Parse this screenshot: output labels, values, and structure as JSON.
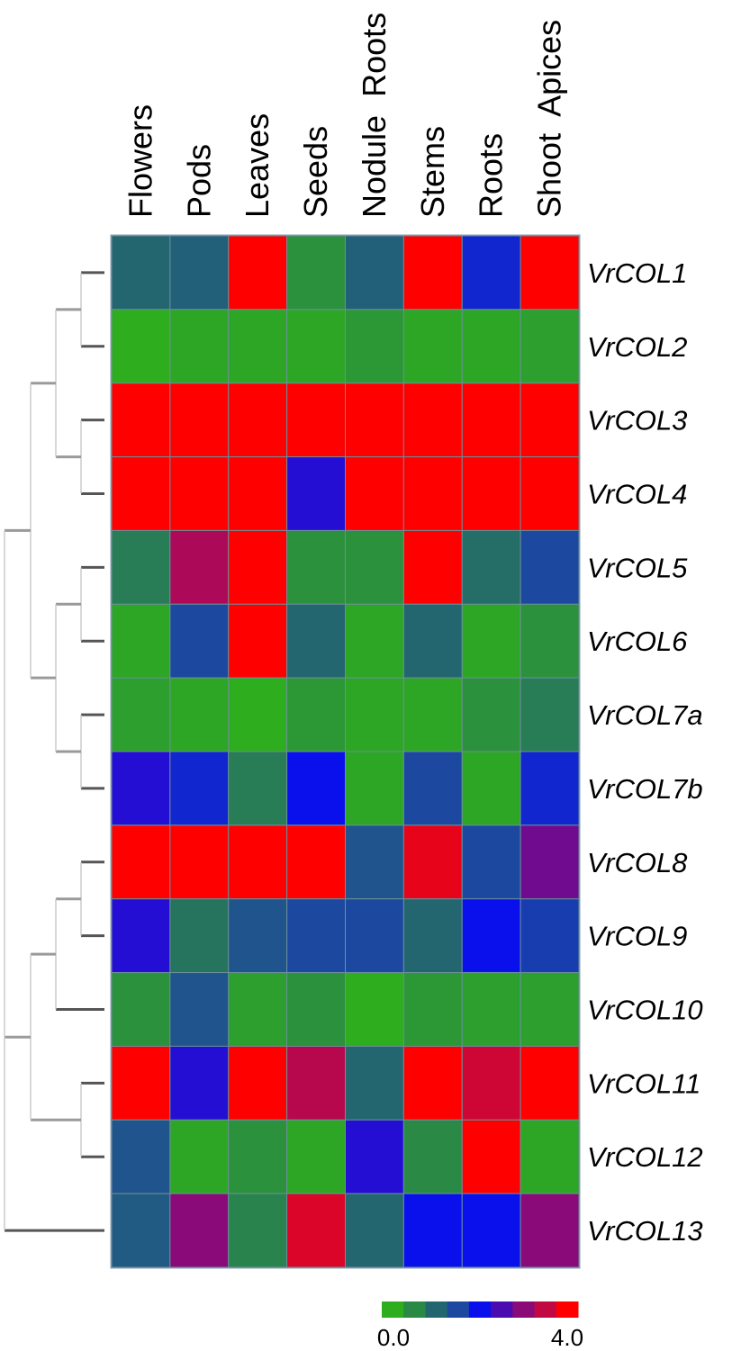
{
  "chart_data": {
    "type": "heatmap",
    "title": "",
    "columns": [
      "Flowers",
      "Pods",
      "Leaves",
      "Seeds",
      "Nodule  Roots",
      "Stems",
      "Roots",
      "Shoot  Apices"
    ],
    "rows": [
      "VrCOL1",
      "VrCOL2",
      "VrCOL3",
      "VrCOL4",
      "VrCOL5",
      "VrCOL6",
      "VrCOL7a",
      "VrCOL7b",
      "VrCOL8",
      "VrCOL9",
      "VrCOL10",
      "VrCOL11",
      "VrCOL12",
      "VrCOL13"
    ],
    "values": [
      [
        1.0,
        1.1,
        4.0,
        0.4,
        1.1,
        4.0,
        1.8,
        4.0
      ],
      [
        0.0,
        0.1,
        0.1,
        0.1,
        0.3,
        0.1,
        0.1,
        0.2
      ],
      [
        4.0,
        4.0,
        4.0,
        4.0,
        4.0,
        4.0,
        4.0,
        4.0
      ],
      [
        4.0,
        4.0,
        4.0,
        2.2,
        4.0,
        4.0,
        4.0,
        4.0
      ],
      [
        0.7,
        3.3,
        4.0,
        0.4,
        0.4,
        4.0,
        0.9,
        1.5
      ],
      [
        0.1,
        1.5,
        4.0,
        1.0,
        0.1,
        1.0,
        0.1,
        0.4
      ],
      [
        0.2,
        0.1,
        0.0,
        0.3,
        0.1,
        0.1,
        0.4,
        0.7
      ],
      [
        2.2,
        1.8,
        0.7,
        2.0,
        0.1,
        1.5,
        0.1,
        1.8
      ],
      [
        4.0,
        4.0,
        4.0,
        4.0,
        1.3,
        3.8,
        1.5,
        2.8
      ],
      [
        2.2,
        0.8,
        1.3,
        1.5,
        1.5,
        1.0,
        2.0,
        1.6
      ],
      [
        0.4,
        1.3,
        0.2,
        0.4,
        0.0,
        0.3,
        0.2,
        0.2
      ],
      [
        4.0,
        2.2,
        4.0,
        3.4,
        1.0,
        4.0,
        3.6,
        4.0
      ],
      [
        1.3,
        0.1,
        0.4,
        0.1,
        2.2,
        0.5,
        4.0,
        0.1
      ],
      [
        1.2,
        3.0,
        0.6,
        3.7,
        1.0,
        2.0,
        2.0,
        3.0
      ]
    ],
    "colorscale": {
      "min": 0.0,
      "max": 4.0,
      "colors": [
        "#2ead1e",
        "#2a8a45",
        "#24666f",
        "#1c48a0",
        "#0a10ec",
        "#4a0cb0",
        "#8a0a7a",
        "#c20842",
        "#ff0000"
      ],
      "min_label": "0.0",
      "max_label": "4.0"
    },
    "dendrogram": true
  }
}
